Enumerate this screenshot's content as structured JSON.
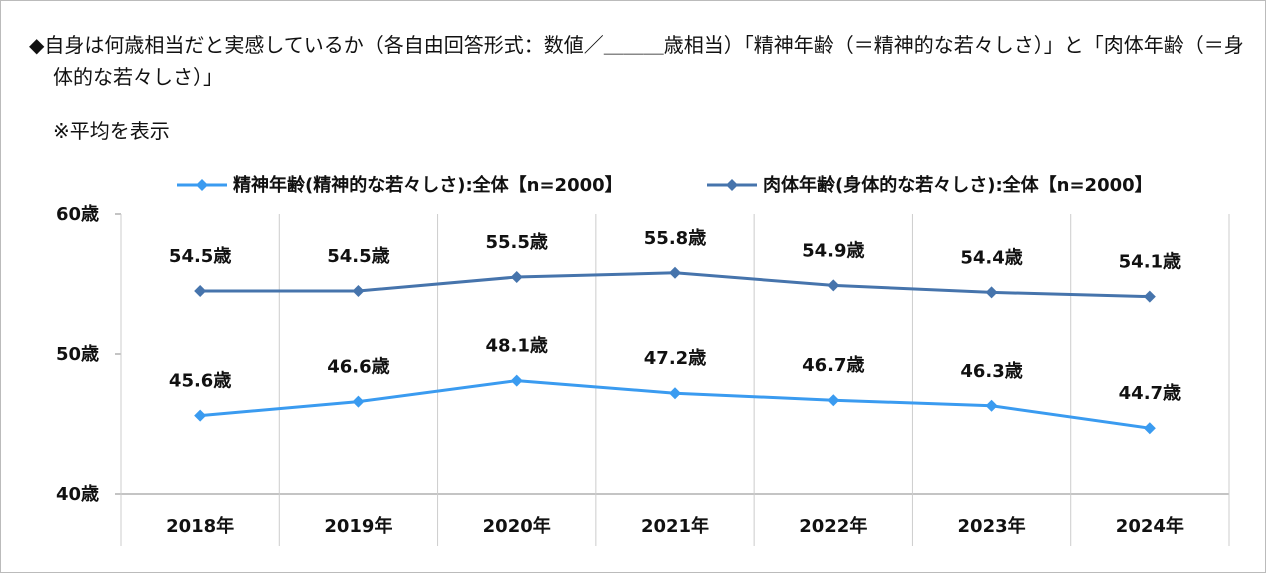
{
  "chart_data": {
    "type": "line",
    "title": "◆自身は何歳相当だと実感しているか（各自由回答形式：数値／＿＿＿歳相当）「精神年齢（＝精神的な若々しさ）」と「肉体年齢（＝身体的な若々しさ）」",
    "subtitle": "※平均を表示",
    "categories": [
      "2018年",
      "2019年",
      "2020年",
      "2021年",
      "2022年",
      "2023年",
      "2024年"
    ],
    "series": [
      {
        "name": "精神年齢(精神的な若々しさ):全体【n=2000】",
        "color": "#3a9bf0",
        "values": [
          45.6,
          46.6,
          48.1,
          47.2,
          46.7,
          46.3,
          44.7
        ],
        "value_labels": [
          "45.6歳",
          "46.6歳",
          "48.1歳",
          "47.2歳",
          "46.7歳",
          "46.3歳",
          "44.7歳"
        ]
      },
      {
        "name": "肉体年齢(身体的な若々しさ):全体【n=2000】",
        "color": "#4674ac",
        "values": [
          54.5,
          54.5,
          55.5,
          55.8,
          54.9,
          54.4,
          54.1
        ],
        "value_labels": [
          "54.5歳",
          "54.5歳",
          "55.5歳",
          "55.8歳",
          "54.9歳",
          "54.4歳",
          "54.1歳"
        ]
      }
    ],
    "ylim": [
      40,
      60
    ],
    "yticks": [
      {
        "value": 40,
        "label": "40歳"
      },
      {
        "value": 50,
        "label": "50歳"
      },
      {
        "value": 60,
        "label": "60歳"
      }
    ],
    "legend": "top-right"
  }
}
